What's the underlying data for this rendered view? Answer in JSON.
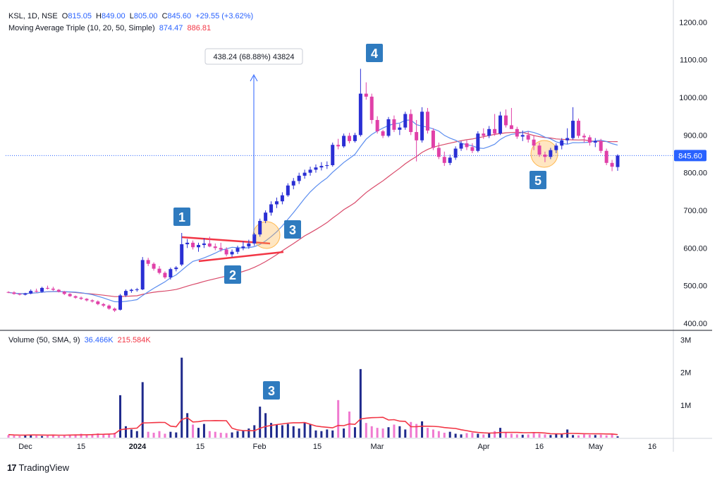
{
  "header": {
    "symbol": "KSL, 1D, NSE",
    "o_label": "O",
    "o": "815.05",
    "h_label": "H",
    "h": "849.00",
    "l_label": "L",
    "l": "805.00",
    "c_label": "C",
    "c": "845.60",
    "change": "+29.55 (+3.62%)"
  },
  "ma_legend": {
    "label": "Moving Average Triple (10, 20, 50, Simple)",
    "v1": "874.47",
    "v2": "886.81"
  },
  "vol_legend": {
    "label": "Volume (50, SMA, 9)",
    "v1": "36.466K",
    "v2": "215.584K"
  },
  "footer": {
    "brand": "TradingView"
  },
  "colors": {
    "up": "#2a2fd4",
    "down": "#e040a8",
    "ma_fast": "#5b8def",
    "ma_slow": "#d94a6a",
    "trend": "#f23645",
    "vol_sma": "#f23645",
    "price_line": "#2962ff"
  },
  "chart_data": {
    "type": "candlestick",
    "price_axis": {
      "ticks": [
        "1200.00",
        "1100.00",
        "1000.00",
        "900.00",
        "800.00",
        "700.00",
        "600.00",
        "500.00",
        "400.00"
      ],
      "range": [
        385,
        1240
      ]
    },
    "volume_axis": {
      "ticks": [
        "3M",
        "2M",
        "1M"
      ],
      "range": [
        0,
        3.2
      ]
    },
    "time_axis": [
      "Dec",
      "15",
      "2024",
      "15",
      "Feb",
      "15",
      "Mar",
      "Apr",
      "16",
      "May",
      "16"
    ],
    "last_price_label": "845.60",
    "measure_label": "438.24 (68.88%) 43824",
    "annotations": [
      "1",
      "2",
      "3",
      "4",
      "5",
      "3"
    ],
    "candles": [
      [
        483,
        485,
        480,
        482
      ],
      [
        482,
        485,
        476,
        478
      ],
      [
        478,
        480,
        474,
        476
      ],
      [
        476,
        481,
        474,
        479
      ],
      [
        479,
        490,
        477,
        486
      ],
      [
        486,
        492,
        482,
        484
      ],
      [
        484,
        497,
        481,
        494
      ],
      [
        494,
        500,
        490,
        492
      ],
      [
        492,
        497,
        486,
        489
      ],
      [
        489,
        491,
        482,
        484
      ],
      [
        484,
        486,
        475,
        478
      ],
      [
        478,
        480,
        470,
        472
      ],
      [
        472,
        474,
        465,
        468
      ],
      [
        468,
        471,
        462,
        465
      ],
      [
        465,
        467,
        458,
        461
      ],
      [
        461,
        464,
        455,
        458
      ],
      [
        458,
        461,
        448,
        451
      ],
      [
        451,
        454,
        443,
        447
      ],
      [
        447,
        450,
        436,
        439
      ],
      [
        439,
        442,
        430,
        434
      ],
      [
        436,
        478,
        434,
        474
      ],
      [
        474,
        490,
        470,
        486
      ],
      [
        486,
        492,
        481,
        489
      ],
      [
        489,
        494,
        484,
        490
      ],
      [
        490,
        576,
        488,
        568
      ],
      [
        568,
        574,
        552,
        558
      ],
      [
        558,
        562,
        540,
        545
      ],
      [
        545,
        552,
        530,
        534
      ],
      [
        534,
        538,
        518,
        522
      ],
      [
        522,
        548,
        516,
        544
      ],
      [
        544,
        552,
        538,
        548
      ],
      [
        556,
        640,
        552,
        610
      ],
      [
        610,
        624,
        600,
        614
      ],
      [
        614,
        620,
        596,
        602
      ],
      [
        602,
        614,
        590,
        608
      ],
      [
        608,
        626,
        600,
        612
      ],
      [
        612,
        630,
        602,
        604
      ],
      [
        604,
        612,
        594,
        600
      ],
      [
        600,
        614,
        590,
        596
      ],
      [
        596,
        602,
        578,
        583
      ],
      [
        583,
        596,
        576,
        590
      ],
      [
        590,
        606,
        584,
        600
      ],
      [
        600,
        618,
        594,
        604
      ],
      [
        604,
        622,
        598,
        612
      ],
      [
        612,
        640,
        606,
        636
      ],
      [
        636,
        678,
        630,
        672
      ],
      [
        672,
        700,
        666,
        694
      ],
      [
        694,
        724,
        686,
        716
      ],
      [
        716,
        734,
        706,
        724
      ],
      [
        724,
        748,
        716,
        740
      ],
      [
        740,
        772,
        736,
        766
      ],
      [
        766,
        786,
        756,
        778
      ],
      [
        778,
        800,
        770,
        792
      ],
      [
        792,
        808,
        784,
        800
      ],
      [
        800,
        816,
        792,
        808
      ],
      [
        808,
        822,
        800,
        814
      ],
      [
        814,
        828,
        806,
        818
      ],
      [
        818,
        830,
        810,
        820
      ],
      [
        820,
        880,
        816,
        874
      ],
      [
        874,
        890,
        862,
        870
      ],
      [
        870,
        904,
        866,
        898
      ],
      [
        898,
        906,
        878,
        884
      ],
      [
        884,
        906,
        880,
        900
      ],
      [
        900,
        1076,
        896,
        1010
      ],
      [
        1010,
        1040,
        994,
        1002
      ],
      [
        1002,
        1010,
        930,
        940
      ],
      [
        940,
        950,
        904,
        910
      ],
      [
        910,
        914,
        892,
        898
      ],
      [
        898,
        948,
        894,
        942
      ],
      [
        942,
        952,
        908,
        914
      ],
      [
        914,
        930,
        900,
        920
      ],
      [
        920,
        962,
        914,
        956
      ],
      [
        956,
        968,
        900,
        908
      ],
      [
        908,
        940,
        830,
        886
      ],
      [
        886,
        974,
        880,
        962
      ],
      [
        962,
        972,
        904,
        912
      ],
      [
        912,
        918,
        860,
        866
      ],
      [
        866,
        880,
        836,
        842
      ],
      [
        842,
        856,
        818,
        826
      ],
      [
        826,
        848,
        820,
        840
      ],
      [
        840,
        870,
        834,
        864
      ],
      [
        864,
        884,
        858,
        878
      ],
      [
        878,
        886,
        860,
        868
      ],
      [
        868,
        878,
        852,
        858
      ],
      [
        858,
        910,
        854,
        904
      ],
      [
        904,
        918,
        890,
        898
      ],
      [
        898,
        924,
        892,
        916
      ],
      [
        916,
        956,
        898,
        904
      ],
      [
        904,
        962,
        900,
        952
      ],
      [
        952,
        968,
        920,
        926
      ],
      [
        926,
        972,
        918,
        916
      ],
      [
        916,
        922,
        890,
        896
      ],
      [
        896,
        912,
        884,
        900
      ],
      [
        900,
        910,
        880,
        888
      ],
      [
        888,
        898,
        860,
        872
      ],
      [
        872,
        880,
        842,
        848
      ],
      [
        848,
        856,
        828,
        842
      ],
      [
        842,
        866,
        836,
        860
      ],
      [
        860,
        878,
        852,
        872
      ],
      [
        872,
        892,
        862,
        886
      ],
      [
        886,
        918,
        876,
        892
      ],
      [
        892,
        974,
        888,
        938
      ],
      [
        938,
        944,
        892,
        898
      ],
      [
        898,
        904,
        880,
        894
      ],
      [
        894,
        900,
        872,
        880
      ],
      [
        880,
        892,
        868,
        884
      ],
      [
        884,
        890,
        852,
        858
      ],
      [
        858,
        864,
        820,
        826
      ],
      [
        826,
        834,
        804,
        816
      ],
      [
        815.05,
        849,
        805,
        845.6
      ]
    ],
    "volumes": [
      0.08,
      0.06,
      0.05,
      0.07,
      0.09,
      0.06,
      0.05,
      0.06,
      0.07,
      0.05,
      0.06,
      0.08,
      0.1,
      0.12,
      0.09,
      0.11,
      0.13,
      0.1,
      0.12,
      0.15,
      1.3,
      0.35,
      0.25,
      0.2,
      1.7,
      0.18,
      0.15,
      0.2,
      0.12,
      0.18,
      0.16,
      2.45,
      0.75,
      0.4,
      0.3,
      0.42,
      0.2,
      0.18,
      0.15,
      0.14,
      0.16,
      0.2,
      0.22,
      0.28,
      0.38,
      0.95,
      0.75,
      0.45,
      0.4,
      0.38,
      0.42,
      0.35,
      0.28,
      0.45,
      0.42,
      0.22,
      0.2,
      0.25,
      0.22,
      1.15,
      0.28,
      0.8,
      0.32,
      2.1,
      0.45,
      0.35,
      0.3,
      0.28,
      0.32,
      0.4,
      0.35,
      0.25,
      0.48,
      0.42,
      0.5,
      0.3,
      0.25,
      0.2,
      0.15,
      0.18,
      0.12,
      0.1,
      0.14,
      0.15,
      0.12,
      0.1,
      0.14,
      0.2,
      0.3,
      0.16,
      0.12,
      0.1,
      0.09,
      0.1,
      0.14,
      0.12,
      0.1,
      0.08,
      0.12,
      0.1,
      0.25,
      0.08,
      0.07,
      0.1,
      0.09,
      0.08,
      0.09,
      0.07,
      0.1,
      0.04
    ]
  }
}
